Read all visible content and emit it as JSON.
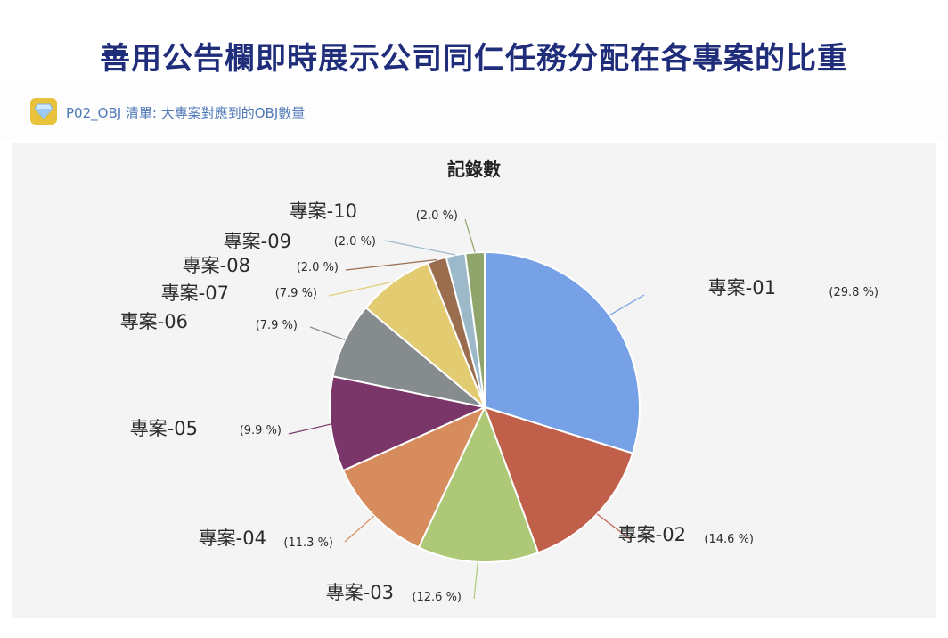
{
  "page": {
    "headline": "善用公告欄即時展示公司同仁任務分配在各專案的比重"
  },
  "widget": {
    "icon": "diamond-icon",
    "title": "P02_OBJ 清單: 大專案對應到的OBJ數量"
  },
  "colors": {
    "headline": "#1f2d7a",
    "widget_title": "#4f79b8",
    "icon_bg": "#e8c23a"
  },
  "chart_data": {
    "type": "pie",
    "title": "記錄數",
    "slices": [
      {
        "label": "專案-01",
        "value": 29.8,
        "pct": "(29.8 %)",
        "color": "#76a1e6"
      },
      {
        "label": "專案-02",
        "value": 14.6,
        "pct": "(14.6 %)",
        "color": "#c0604b"
      },
      {
        "label": "專案-03",
        "value": 12.6,
        "pct": "(12.6 %)",
        "color": "#adc977"
      },
      {
        "label": "專案-04",
        "value": 11.3,
        "pct": "(11.3 %)",
        "color": "#d68c5c"
      },
      {
        "label": "專案-05",
        "value": 9.9,
        "pct": "(9.9 %)",
        "color": "#7a3669"
      },
      {
        "label": "專案-06",
        "value": 7.9,
        "pct": "(7.9 %)",
        "color": "#868b8e"
      },
      {
        "label": "專案-07",
        "value": 7.9,
        "pct": "(7.9 %)",
        "color": "#e2cb70"
      },
      {
        "label": "專案-08",
        "value": 2.0,
        "pct": "(2.0 %)",
        "color": "#9a6d4e"
      },
      {
        "label": "專案-09",
        "value": 2.0,
        "pct": "(2.0 %)",
        "color": "#9bb9c9"
      },
      {
        "label": "專案-10",
        "value": 2.0,
        "pct": "(2.0 %)",
        "color": "#8ea46b"
      }
    ]
  }
}
